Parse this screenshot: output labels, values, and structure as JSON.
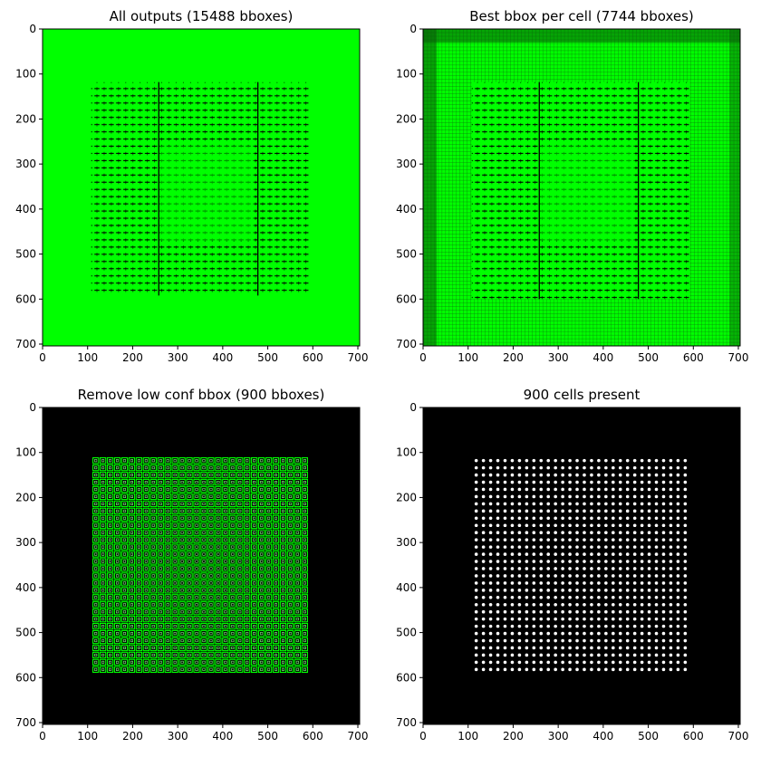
{
  "figure": {
    "background": "#ffffff",
    "green": "#00ff00",
    "black": "#000000",
    "white": "#ffffff"
  },
  "chart_data": [
    {
      "type": "heatmap",
      "title": "All outputs (15488 bboxes)",
      "xlim": [
        0,
        704
      ],
      "ylim": [
        704,
        0
      ],
      "xticks": [
        0,
        100,
        200,
        300,
        400,
        500,
        600,
        700
      ],
      "yticks": [
        0,
        100,
        200,
        300,
        400,
        500,
        600,
        700
      ],
      "style": "green-fill",
      "grid_cells": 88,
      "dense_region": [
        108,
        118,
        592,
        592
      ]
    },
    {
      "type": "heatmap",
      "title": "Best bbox per cell (7744 bboxes)",
      "xlim": [
        0,
        704
      ],
      "ylim": [
        704,
        0
      ],
      "xticks": [
        0,
        100,
        200,
        300,
        400,
        500,
        600,
        700
      ],
      "yticks": [
        0,
        100,
        200,
        300,
        400,
        500,
        600,
        700
      ],
      "style": "green-grid",
      "grid_cells": 88,
      "dense_region": [
        108,
        118,
        592,
        600
      ]
    },
    {
      "type": "scatter",
      "title": "Remove low conf bbox (900 bboxes)",
      "xlim": [
        0,
        704
      ],
      "ylim": [
        704,
        0
      ],
      "xticks": [
        0,
        100,
        200,
        300,
        400,
        500,
        600,
        700
      ],
      "yticks": [
        0,
        100,
        200,
        300,
        400,
        500,
        600,
        700
      ],
      "style": "green-boxes",
      "grid": {
        "n": 30,
        "start": 118,
        "end": 582
      }
    },
    {
      "type": "scatter",
      "title": "900 cells present",
      "xlim": [
        0,
        704
      ],
      "ylim": [
        704,
        0
      ],
      "xticks": [
        0,
        100,
        200,
        300,
        400,
        500,
        600,
        700
      ],
      "yticks": [
        0,
        100,
        200,
        300,
        400,
        500,
        600,
        700
      ],
      "style": "white-dots",
      "grid": {
        "n": 30,
        "start": 118,
        "end": 582
      }
    }
  ]
}
